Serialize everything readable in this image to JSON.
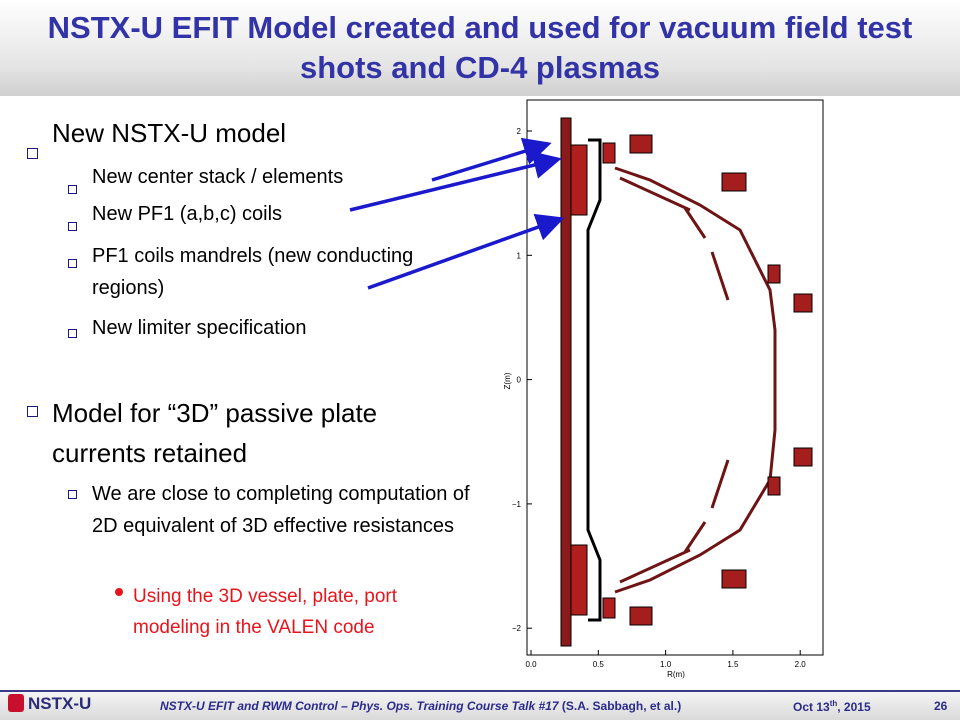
{
  "header": {
    "title": "NSTX-U EFIT Model created and used for vacuum field test shots and CD-4 plasmas"
  },
  "bullets": [
    {
      "text": "New NSTX-U model",
      "items": [
        {
          "text": "New center stack / elements"
        },
        {
          "text": "New PF1 (a,b,c) coils"
        },
        {
          "text": "PF1 coils mandrels (new conducting regions)"
        },
        {
          "text": "New limiter specification"
        }
      ]
    },
    {
      "text": "Model for “3D” passive plate currents retained",
      "items": [
        {
          "text": "We are close to completing computation of 2D equivalent of 3D effective resistances",
          "items": [
            {
              "text": "Using the 3D vessel, plate, port modeling in the VALEN code"
            }
          ]
        }
      ]
    }
  ],
  "figure": {
    "xlabel": "R(m)",
    "ylabel": "Z(m)",
    "xticks": [
      "0.0",
      "0.5",
      "1.0",
      "1.5",
      "2.0"
    ],
    "yticks": [
      "2",
      "1",
      "0",
      "−1",
      "−2"
    ]
  },
  "footer": {
    "logo": "NSTX-U",
    "talk": "NSTX-U EFIT and RWM Control – Phys. Ops. Training Course Talk #17",
    "author": "(S.A. Sabbagh, et al.)",
    "date": {
      "month_day": "Oct 13",
      "suffix": "th",
      "year": ", 2015"
    },
    "page": "26"
  }
}
